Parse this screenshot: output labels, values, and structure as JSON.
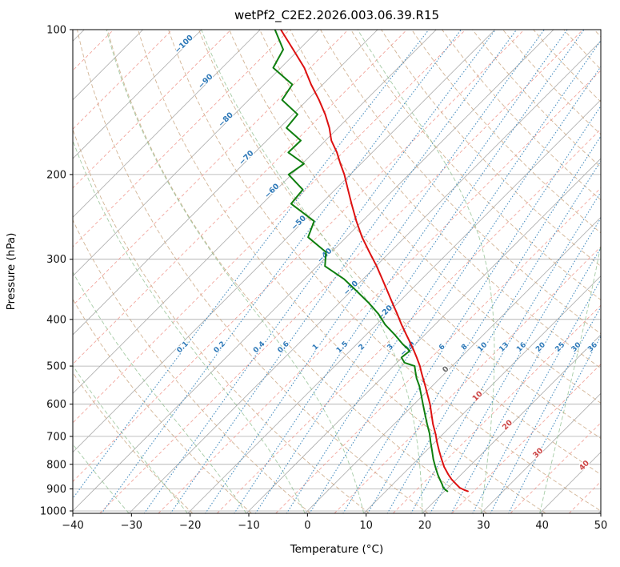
{
  "chart_data": {
    "type": "line",
    "variant": "skew-t-log-p",
    "title": "wetPf2_C2E2.2026.003.06.39.R15",
    "xlabel": "Temperature (°C)",
    "ylabel": "Pressure (hPa)",
    "xlim": [
      -40,
      50
    ],
    "ylim_hpa": [
      1012,
      100
    ],
    "x_ticks": [
      -40,
      -30,
      -20,
      -10,
      0,
      10,
      20,
      30,
      40,
      50
    ],
    "y_ticks": [
      100,
      200,
      300,
      400,
      500,
      600,
      700,
      800,
      900,
      1000
    ],
    "skew_deg": 45,
    "grid": true,
    "series": [
      {
        "name": "temperature",
        "color": "#dd1111",
        "points_p_t": [
          [
            100,
            -86.5
          ],
          [
            110,
            -81
          ],
          [
            120,
            -76
          ],
          [
            130,
            -72
          ],
          [
            140,
            -68
          ],
          [
            150,
            -64.5
          ],
          [
            160,
            -61.5
          ],
          [
            170,
            -59
          ],
          [
            180,
            -56
          ],
          [
            190,
            -53.5
          ],
          [
            200,
            -51
          ],
          [
            215,
            -47.8
          ],
          [
            230,
            -44.8
          ],
          [
            250,
            -41
          ],
          [
            270,
            -37.3
          ],
          [
            290,
            -33.5
          ],
          [
            310,
            -29.9
          ],
          [
            330,
            -26.7
          ],
          [
            350,
            -23.7
          ],
          [
            370,
            -20.9
          ],
          [
            390,
            -18.2
          ],
          [
            410,
            -15.7
          ],
          [
            430,
            -13.2
          ],
          [
            450,
            -10.8
          ],
          [
            465,
            -9.1
          ],
          [
            480,
            -7.5
          ],
          [
            492,
            -6.3
          ],
          [
            500,
            -5.5
          ],
          [
            515,
            -4.2
          ],
          [
            530,
            -2.9
          ],
          [
            550,
            -1.2
          ],
          [
            575,
            0.8
          ],
          [
            600,
            2.7
          ],
          [
            630,
            4.7
          ],
          [
            660,
            6.6
          ],
          [
            690,
            8.6
          ],
          [
            720,
            10.4
          ],
          [
            750,
            12.2
          ],
          [
            780,
            14.0
          ],
          [
            810,
            15.8
          ],
          [
            840,
            17.8
          ],
          [
            860,
            19.2
          ],
          [
            880,
            20.8
          ],
          [
            895,
            22.0
          ],
          [
            905,
            23.2
          ],
          [
            910,
            24.0
          ]
        ]
      },
      {
        "name": "dewpoint",
        "color": "#0f7f0f",
        "points_p_t": [
          [
            100,
            -87.5
          ],
          [
            110,
            -82.7
          ],
          [
            120,
            -81.3
          ],
          [
            130,
            -75.2
          ],
          [
            140,
            -74.3
          ],
          [
            150,
            -69.2
          ],
          [
            160,
            -68.8
          ],
          [
            170,
            -64.2
          ],
          [
            180,
            -64.3
          ],
          [
            190,
            -59.7
          ],
          [
            200,
            -60.5
          ],
          [
            215,
            -55.5
          ],
          [
            230,
            -55.1
          ],
          [
            250,
            -48.2
          ],
          [
            270,
            -46.5
          ],
          [
            290,
            -40.9
          ],
          [
            310,
            -38.7
          ],
          [
            330,
            -33.2
          ],
          [
            350,
            -28.9
          ],
          [
            370,
            -24.9
          ],
          [
            390,
            -21.4
          ],
          [
            410,
            -18.5
          ],
          [
            430,
            -15.2
          ],
          [
            450,
            -12.2
          ],
          [
            465,
            -9.8
          ],
          [
            480,
            -10.1
          ],
          [
            492,
            -8.7
          ],
          [
            500,
            -6.4
          ],
          [
            515,
            -5.2
          ],
          [
            530,
            -4.0
          ],
          [
            550,
            -2.2
          ],
          [
            575,
            -0.3
          ],
          [
            600,
            1.5
          ],
          [
            630,
            3.6
          ],
          [
            660,
            5.6
          ],
          [
            690,
            7.6
          ],
          [
            720,
            9.3
          ],
          [
            750,
            11.0
          ],
          [
            780,
            12.6
          ],
          [
            810,
            14.3
          ],
          [
            840,
            16.0
          ],
          [
            860,
            17.2
          ],
          [
            880,
            18.4
          ],
          [
            895,
            19.2
          ],
          [
            905,
            20.0
          ],
          [
            910,
            20.5
          ]
        ]
      }
    ],
    "background": {
      "isotherms": {
        "min": -160,
        "max": 50,
        "step": 10,
        "color": "#ababab",
        "style": "solid"
      },
      "isotherm_minors": {
        "min": -155,
        "max": 45,
        "step": 10,
        "color": "#f0968c",
        "style": "dashed"
      },
      "dry_adiabats": {
        "min": -20,
        "max": 200,
        "step": 10,
        "color": "#c7a27b",
        "style": "dashed"
      },
      "moist_adiabats": {
        "min": -40,
        "max": 40,
        "step": 10,
        "color": "#8fbf8f",
        "style": "dashed"
      },
      "mixing_ratio_g_kg": [
        0.1,
        0.2,
        0.4,
        0.6,
        1,
        1.5,
        2,
        3,
        4,
        6,
        8,
        10,
        13,
        16,
        20,
        25,
        30,
        36
      ],
      "mixing_color": "#4a8fc0"
    },
    "labels": {
      "isotherms": [
        {
          "t": -100,
          "p": 108
        },
        {
          "t": -90,
          "p": 129
        },
        {
          "t": -80,
          "p": 155
        },
        {
          "t": -70,
          "p": 186
        },
        {
          "t": -60,
          "p": 218
        },
        {
          "t": -50,
          "p": 254
        },
        {
          "t": -40,
          "p": 297
        },
        {
          "t": -30,
          "p": 347
        },
        {
          "t": -20,
          "p": 390
        },
        {
          "t": -10,
          "p": 464
        },
        {
          "t": 0,
          "p": 512
        },
        {
          "t": 10,
          "p": 582
        },
        {
          "t": 20,
          "p": 668
        },
        {
          "t": 30,
          "p": 764
        },
        {
          "t": 40,
          "p": 811
        }
      ],
      "isotherm_label_colors": {
        "negative": "#2e79b8",
        "zero": "#6a6a6a",
        "positive": "#cc4444"
      },
      "mixing_label_p": 460,
      "mixing_label_color": "#2e79b8"
    }
  }
}
